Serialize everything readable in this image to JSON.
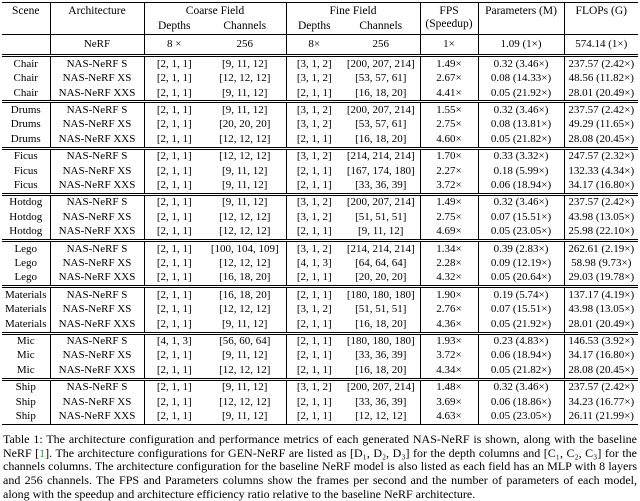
{
  "table": {
    "header": {
      "scene": "Scene",
      "architecture": "Architecture",
      "coarse_field": "Coarse Field",
      "fine_field": "Fine Field",
      "depths": "Depths",
      "channels": "Channels",
      "fps_line1": "FPS",
      "fps_line2": "(Speedup)",
      "parameters": "Parameters (M)",
      "flops": "FLOPs (G)"
    },
    "baseline": [
      "",
      "NeRF",
      "8 ×",
      "256",
      "8×",
      "256",
      "1×",
      "1.09 (1×)",
      "574.14 (1×)"
    ],
    "groups": [
      {
        "scene": "Chair",
        "rows": [
          [
            "Chair",
            "NAS-NeRF S",
            "[2, 1, 1]",
            "[9, 11, 12]",
            "[3, 1, 2]",
            "[200, 207, 214]",
            "1.49×",
            "0.32 (3.46×)",
            "237.57 (2.42×)"
          ],
          [
            "Chair",
            "NAS-NeRF XS",
            "[2, 1, 1]",
            "[12, 12, 12]",
            "[3, 1, 2]",
            "[53, 57, 61]",
            "2.67×",
            "0.08 (14.33×)",
            "48.56 (11.82×)"
          ],
          [
            "Chair",
            "NAS-NeRF XXS",
            "[2, 1, 1]",
            "[9, 11, 12]",
            "[2, 1, 1]",
            "[16, 18, 20]",
            "4.41×",
            "0.05 (21.92×)",
            "28.01 (20.49×)"
          ]
        ]
      },
      {
        "scene": "Drums",
        "rows": [
          [
            "Drums",
            "NAS-NeRF S",
            "[2, 1, 1]",
            "[9, 11, 12]",
            "[3, 1, 2]",
            "[200, 207, 214]",
            "1.55×",
            "0.32 (3.46×)",
            "237.57 (2.42×)"
          ],
          [
            "Drums",
            "NAS-NeRF XS",
            "[2, 1, 1]",
            "[20, 20, 20]",
            "[3, 1, 2]",
            "[53, 57, 61]",
            "2.75×",
            "0.08 (13.81×)",
            "49.29 (11.65×)"
          ],
          [
            "Drums",
            "NAS-NeRF XXS",
            "[2, 1, 1]",
            "[12, 12, 12]",
            "[2, 1, 1]",
            "[16, 18, 20]",
            "4.60×",
            "0.05 (21.82×)",
            "28.08 (20.45×)"
          ]
        ]
      },
      {
        "scene": "Ficus",
        "rows": [
          [
            "Ficus",
            "NAS-NeRF S",
            "[2, 1, 1]",
            "[12, 12, 12]",
            "[3, 1, 2]",
            "[214, 214, 214]",
            "1.70×",
            "0.33 (3.32×)",
            "247.57 (2.32×)"
          ],
          [
            "Ficus",
            "NAS-NeRF XS",
            "[2, 1, 1]",
            "[9, 11, 12]",
            "[2, 1, 1]",
            "[167, 174, 180]",
            "2.27×",
            "0.18 (5.99×)",
            "132.33 (4.34×)"
          ],
          [
            "Ficus",
            "NAS-NeRF XXS",
            "[2, 1, 1]",
            "[9, 11, 12]",
            "[2, 1, 1]",
            "[33, 36, 39]",
            "3.72×",
            "0.06 (18.94×)",
            "34.17 (16.80×)"
          ]
        ]
      },
      {
        "scene": "Hotdog",
        "rows": [
          [
            "Hotdog",
            "NAS-NeRF S",
            "[2, 1, 1]",
            "[9, 11, 12]",
            "[3, 1, 2]",
            "[200, 207, 214]",
            "1.49×",
            "0.32 (3.46×)",
            "237.57 (2.42×)"
          ],
          [
            "Hotdog",
            "NAS-NeRF XS",
            "[2, 1, 1]",
            "[12, 12, 12]",
            "[3, 1, 2]",
            "[51, 51, 51]",
            "2.75×",
            "0.07 (15.51×)",
            "43.98 (13.05×)"
          ],
          [
            "Hotdog",
            "NAS-NeRF XXS",
            "[2, 1, 1]",
            "[12, 12, 12]",
            "[2, 1, 1]",
            "[9, 11, 12]",
            "4.69×",
            "0.05 (23.05×)",
            "25.98 (22.10×)"
          ]
        ]
      },
      {
        "scene": "Lego",
        "rows": [
          [
            "Lego",
            "NAS-NeRF S",
            "[2, 1, 1]",
            "[100, 104, 109]",
            "[3, 1, 2]",
            "[214, 214, 214]",
            "1.34×",
            "0.39 (2.83×)",
            "262.61 (2.19×)"
          ],
          [
            "Lego",
            "NAS-NeRF XS",
            "[2, 1, 1]",
            "[12, 12, 12]",
            "[4, 1, 3]",
            "[64, 64, 64]",
            "2.28×",
            "0.09 (12.19×)",
            "58.98 (9.73×)"
          ],
          [
            "Lego",
            "NAS-NeRF XXS",
            "[2, 1, 1]",
            "[16, 18, 20]",
            "[2, 1, 1]",
            "[20, 20, 20]",
            "4.32×",
            "0.05 (20.64×)",
            "29.03 (19.78×)"
          ]
        ]
      },
      {
        "scene": "Materials",
        "rows": [
          [
            "Materials",
            "NAS-NeRF S",
            "[2, 1, 1]",
            "[16, 18, 20]",
            "[2, 1, 1]",
            "[180, 180, 180]",
            "1.90×",
            "0.19 (5.74×)",
            "137.17 (4.19×)"
          ],
          [
            "Materials",
            "NAS-NeRF XS",
            "[2, 1, 1]",
            "[12, 12, 12]",
            "[3, 1, 2]",
            "[51, 51, 51]",
            "2.76×",
            "0.07 (15.51×)",
            "43.98 (13.05×)"
          ],
          [
            "Materials",
            "NAS-NeRF XXS",
            "[2, 1, 1]",
            "[9, 11, 12]",
            "[2, 1, 1]",
            "[16, 18, 20]",
            "4.36×",
            "0.05 (21.92×)",
            "28.01 (20.49×)"
          ]
        ]
      },
      {
        "scene": "Mic",
        "rows": [
          [
            "Mic",
            "NAS-NeRF S",
            "[4, 1, 3]",
            "[56, 60, 64]",
            "[2, 1, 1]",
            "[180, 180, 180]",
            "1.93×",
            "0.23 (4.83×)",
            "146.53 (3.92×)"
          ],
          [
            "Mic",
            "NAS-NeRF XS",
            "[2, 1, 1]",
            "[9, 11, 12]",
            "[2, 1, 1]",
            "[33, 36, 39]",
            "3.72×",
            "0.06 (18.94×)",
            "34.17 (16.80×)"
          ],
          [
            "Mic",
            "NAS-NeRF XXS",
            "[2, 1, 1]",
            "[12, 12, 12]",
            "[2, 1, 1]",
            "[16, 18, 20]",
            "4.34×",
            "0.05 (21.82×)",
            "28.08 (20.45×)"
          ]
        ]
      },
      {
        "scene": "Ship",
        "rows": [
          [
            "Ship",
            "NAS-NeRF S",
            "[2, 1, 1]",
            "[9, 11, 12]",
            "[3, 1, 2]",
            "[200, 207, 214]",
            "1.48×",
            "0.32 (3.46×)",
            "237.57 (2.42×)"
          ],
          [
            "Ship",
            "NAS-NeRF XS",
            "[2, 1, 1]",
            "[12, 12, 12]",
            "[2, 1, 1]",
            "[33, 36, 39]",
            "3.69×",
            "0.06 (18.86×)",
            "34.23 (16.77×)"
          ],
          [
            "Ship",
            "NAS-NeRF XXS",
            "[2, 1, 1]",
            "[9, 11, 12]",
            "[2, 1, 1]",
            "[12, 12, 12]",
            "4.63×",
            "0.05 (23.05×)",
            "26.11 (21.99×)"
          ]
        ]
      }
    ]
  },
  "caption": {
    "before_citation": "Table 1: The architecture configuration and performance metrics of each generated NAS-NeRF is shown, along with the baseline NeRF [",
    "citation": "1",
    "after_citation": "]. The architecture configurations for GEN-NeRF are listed as [D₁, D₂, D₃] for the depth columns and [C₁, C₂, C₃] for the channels columns. The architecture configuration for the baseline NeRF model is also listed as each field has an MLP with 8 layers and 256 channels. The FPS and Parameters columns show the frames per second and the number of parameters of each model, along with the speedup and architecture efficiency ratio relative to the baseline NeRF architecture."
  },
  "colors": {
    "citation_green": "#22aa22",
    "rule_black": "#000000"
  }
}
